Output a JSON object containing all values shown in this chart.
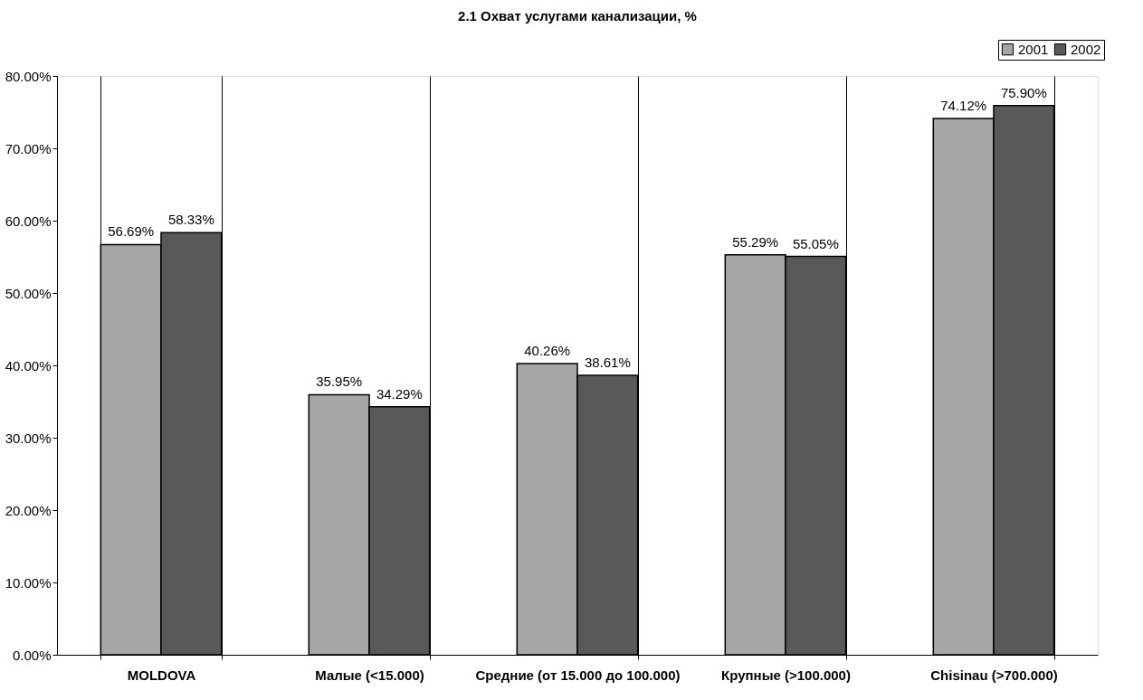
{
  "chart_data": {
    "type": "bar",
    "title": "2.1  Охват услугами канализации, %",
    "categories": [
      "MOLDOVA",
      "Малые  (<15.000)",
      "Средние (от 15.000 до 100.000)",
      "Крупные (>100.000)",
      "Chisinau (>700.000)"
    ],
    "series": [
      {
        "name": "2001",
        "color": "#a6a6a6",
        "values": [
          56.69,
          35.95,
          40.26,
          55.29,
          74.12
        ],
        "value_labels": [
          "56.69%",
          "35.95%",
          "40.26%",
          "55.29%",
          "74.12%"
        ]
      },
      {
        "name": "2002",
        "color": "#595959",
        "values": [
          58.33,
          34.29,
          38.61,
          55.05,
          75.9
        ],
        "value_labels": [
          "58.33%",
          "34.29%",
          "38.61%",
          "55.05%",
          "75.90%"
        ]
      }
    ],
    "ylim": [
      0,
      80
    ],
    "yticks": [
      {
        "value": 0,
        "label": "0.00%"
      },
      {
        "value": 10,
        "label": "10.00%"
      },
      {
        "value": 20,
        "label": "20.00%"
      },
      {
        "value": 30,
        "label": "30.00%"
      },
      {
        "value": 40,
        "label": "40.00%"
      },
      {
        "value": 50,
        "label": "50.00%"
      },
      {
        "value": 60,
        "label": "60.00%"
      },
      {
        "value": 70,
        "label": "70.00%"
      },
      {
        "value": 80,
        "label": "80.00%"
      }
    ],
    "grid": "x",
    "legend": "top right"
  }
}
